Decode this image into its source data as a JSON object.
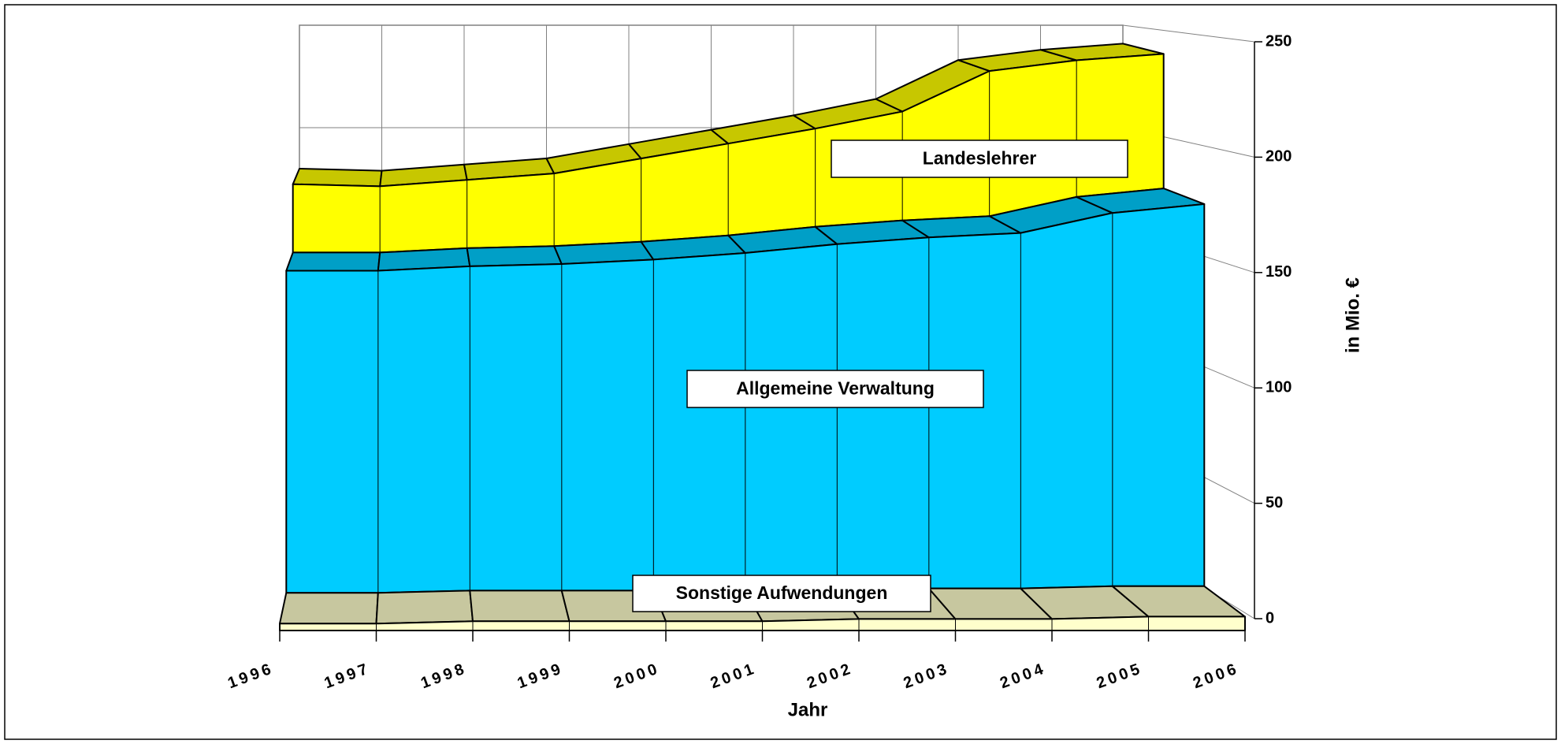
{
  "chart_data": {
    "type": "area3d",
    "x_label": "Jahr",
    "y_label": "in Mio. €",
    "categories": [
      "1996",
      "1997",
      "1998",
      "1999",
      "2000",
      "2001",
      "2002",
      "2003",
      "2004",
      "2005",
      "2006"
    ],
    "series": [
      {
        "name": "Sonstige Aufwendungen",
        "color": "#ffffcc",
        "values": [
          3,
          3,
          4,
          4,
          4,
          4,
          5,
          5,
          5,
          6,
          6
        ]
      },
      {
        "name": "Allgemeine Verwaltung",
        "color": "#00ccff",
        "values": [
          145,
          145,
          146,
          147,
          149,
          152,
          155,
          158,
          160,
          168,
          172
        ]
      },
      {
        "name": "Landeslehrer",
        "color": "#ffff00",
        "values": [
          32,
          31,
          32,
          34,
          39,
          43,
          46,
          51,
          68,
          64,
          63
        ]
      }
    ],
    "ylim": [
      0,
      250
    ],
    "yticks": [
      0,
      50,
      100,
      150,
      200,
      250
    ],
    "grid": true
  }
}
